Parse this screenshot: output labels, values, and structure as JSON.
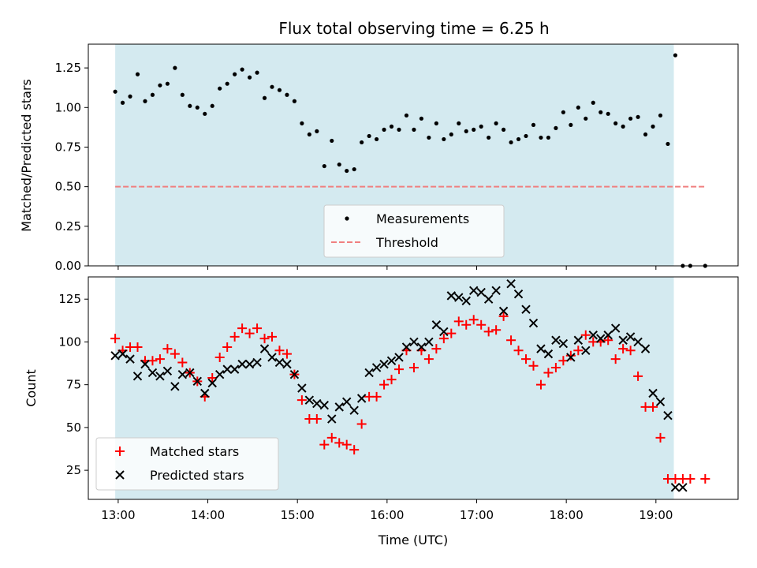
{
  "colors": {
    "span_fill": "#d4eaf0",
    "threshold_line": "#f08080",
    "measurement_marker": "#000000",
    "matched_marker": "#ff0000",
    "predicted_marker": "#000000"
  },
  "chart_data": [
    {
      "type": "scatter",
      "title": "Flux total observing time = 6.25 h",
      "xlabel": "",
      "ylabel": "Matched/Predicted stars",
      "xlim": [
        "12:40",
        "19:55"
      ],
      "ylim": [
        0,
        1.4
      ],
      "yticks": [
        0.0,
        0.25,
        0.5,
        0.75,
        1.0,
        1.25
      ],
      "ytick_labels": [
        "0.00",
        "0.25",
        "0.50",
        "0.75",
        "1.00",
        "1.25"
      ],
      "xticks": [
        "13:00",
        "14:00",
        "15:00",
        "16:00",
        "17:00",
        "18:00",
        "19:00"
      ],
      "shaded_interval": [
        "12:58",
        "19:12"
      ],
      "legend_position": "lower center",
      "series": [
        {
          "name": "Measurements",
          "style": "dots",
          "x": [
            "12:58",
            "13:03",
            "13:08",
            "13:13",
            "13:18",
            "13:23",
            "13:28",
            "13:33",
            "13:38",
            "13:43",
            "13:48",
            "13:53",
            "13:58",
            "14:03",
            "14:08",
            "14:13",
            "14:18",
            "14:23",
            "14:28",
            "14:33",
            "14:38",
            "14:43",
            "14:48",
            "14:53",
            "14:58",
            "15:03",
            "15:08",
            "15:13",
            "15:18",
            "15:23",
            "15:28",
            "15:33",
            "15:38",
            "15:43",
            "15:48",
            "15:53",
            "15:58",
            "16:03",
            "16:08",
            "16:13",
            "16:18",
            "16:23",
            "16:28",
            "16:33",
            "16:38",
            "16:43",
            "16:48",
            "16:53",
            "16:58",
            "17:03",
            "17:08",
            "17:13",
            "17:18",
            "17:23",
            "17:28",
            "17:33",
            "17:38",
            "17:43",
            "17:48",
            "17:53",
            "17:58",
            "18:03",
            "18:08",
            "18:13",
            "18:18",
            "18:23",
            "18:28",
            "18:33",
            "18:38",
            "18:43",
            "18:48",
            "18:53",
            "18:58",
            "19:03",
            "19:08",
            "19:13",
            "19:18",
            "19:23",
            "19:33"
          ],
          "y": [
            1.1,
            1.03,
            1.07,
            1.21,
            1.04,
            1.08,
            1.14,
            1.15,
            1.25,
            1.08,
            1.01,
            1.0,
            0.96,
            1.01,
            1.12,
            1.15,
            1.21,
            1.24,
            1.19,
            1.22,
            1.06,
            1.13,
            1.11,
            1.08,
            1.04,
            0.9,
            0.83,
            0.85,
            0.63,
            0.79,
            0.64,
            0.6,
            0.61,
            0.78,
            0.82,
            0.8,
            0.86,
            0.88,
            0.86,
            0.95,
            0.86,
            0.93,
            0.81,
            0.9,
            0.8,
            0.83,
            0.9,
            0.85,
            0.86,
            0.88,
            0.81,
            0.9,
            0.86,
            0.78,
            0.8,
            0.82,
            0.89,
            0.81,
            0.81,
            0.87,
            0.97,
            0.89,
            1.0,
            0.93,
            1.03,
            0.97,
            0.96,
            0.9,
            0.88,
            0.93,
            0.94,
            0.83,
            0.88,
            0.95,
            0.77,
            1.33,
            0.0,
            0.0,
            0.0
          ]
        },
        {
          "name": "Threshold",
          "style": "dashed-line",
          "x": [
            "12:58",
            "19:33"
          ],
          "y": [
            0.5,
            0.5
          ]
        }
      ]
    },
    {
      "type": "scatter",
      "title": "",
      "xlabel": "Time (UTC)",
      "ylabel": "Count",
      "xlim": [
        "12:40",
        "19:55"
      ],
      "ylim": [
        8,
        138
      ],
      "yticks": [
        25,
        50,
        75,
        100,
        125
      ],
      "ytick_labels": [
        "25",
        "50",
        "75",
        "100",
        "125"
      ],
      "xticks": [
        "13:00",
        "14:00",
        "15:00",
        "16:00",
        "17:00",
        "18:00",
        "19:00"
      ],
      "xtick_labels": [
        "13:00",
        "14:00",
        "15:00",
        "16:00",
        "17:00",
        "18:00",
        "19:00"
      ],
      "shaded_interval": [
        "12:58",
        "19:12"
      ],
      "legend_position": "lower left",
      "series": [
        {
          "name": "Matched stars",
          "style": "plus",
          "x": [
            "12:58",
            "13:03",
            "13:08",
            "13:13",
            "13:18",
            "13:23",
            "13:28",
            "13:33",
            "13:38",
            "13:43",
            "13:48",
            "13:53",
            "13:58",
            "14:03",
            "14:08",
            "14:13",
            "14:18",
            "14:23",
            "14:28",
            "14:33",
            "14:38",
            "14:43",
            "14:48",
            "14:53",
            "14:58",
            "15:03",
            "15:08",
            "15:13",
            "15:18",
            "15:23",
            "15:28",
            "15:33",
            "15:38",
            "15:43",
            "15:48",
            "15:53",
            "15:58",
            "16:03",
            "16:08",
            "16:13",
            "16:18",
            "16:23",
            "16:28",
            "16:33",
            "16:38",
            "16:43",
            "16:48",
            "16:53",
            "16:58",
            "17:03",
            "17:08",
            "17:13",
            "17:18",
            "17:23",
            "17:28",
            "17:33",
            "17:38",
            "17:43",
            "17:48",
            "17:53",
            "17:58",
            "18:03",
            "18:08",
            "18:13",
            "18:18",
            "18:23",
            "18:28",
            "18:33",
            "18:38",
            "18:43",
            "18:48",
            "18:53",
            "18:58",
            "19:03",
            "19:08",
            "19:13",
            "19:18",
            "19:23",
            "19:33"
          ],
          "y": [
            102,
            95,
            97,
            97,
            89,
            89,
            90,
            96,
            93,
            88,
            82,
            77,
            68,
            79,
            91,
            97,
            103,
            108,
            105,
            108,
            102,
            103,
            95,
            93,
            81,
            66,
            55,
            55,
            40,
            44,
            41,
            40,
            37,
            52,
            68,
            68,
            75,
            78,
            84,
            95,
            85,
            95,
            90,
            96,
            102,
            105,
            112,
            110,
            113,
            110,
            106,
            107,
            115,
            101,
            95,
            90,
            86,
            75,
            82,
            85,
            89,
            92,
            95,
            104,
            100,
            100,
            101,
            90,
            96,
            95,
            80,
            62,
            62,
            44,
            20,
            20,
            20,
            20,
            20
          ]
        },
        {
          "name": "Predicted stars",
          "style": "x",
          "x": [
            "12:58",
            "13:03",
            "13:08",
            "13:13",
            "13:18",
            "13:23",
            "13:28",
            "13:33",
            "13:38",
            "13:43",
            "13:48",
            "13:53",
            "13:58",
            "14:03",
            "14:08",
            "14:13",
            "14:18",
            "14:23",
            "14:28",
            "14:33",
            "14:38",
            "14:43",
            "14:48",
            "14:53",
            "14:58",
            "15:03",
            "15:08",
            "15:13",
            "15:18",
            "15:23",
            "15:28",
            "15:33",
            "15:38",
            "15:43",
            "15:48",
            "15:53",
            "15:58",
            "16:03",
            "16:08",
            "16:13",
            "16:18",
            "16:23",
            "16:28",
            "16:33",
            "16:38",
            "16:43",
            "16:48",
            "16:53",
            "16:58",
            "17:03",
            "17:08",
            "17:13",
            "17:18",
            "17:23",
            "17:28",
            "17:33",
            "17:38",
            "17:43",
            "17:48",
            "17:53",
            "17:58",
            "18:03",
            "18:08",
            "18:13",
            "18:18",
            "18:23",
            "18:28",
            "18:33",
            "18:38",
            "18:43",
            "18:48",
            "18:53",
            "18:58",
            "19:03",
            "19:08",
            "19:13",
            "19:18"
          ],
          "y": [
            92,
            93,
            90,
            80,
            87,
            82,
            80,
            83,
            74,
            81,
            82,
            77,
            70,
            76,
            81,
            84,
            84,
            87,
            87,
            88,
            96,
            91,
            88,
            87,
            81,
            73,
            66,
            64,
            63,
            55,
            62,
            65,
            60,
            67,
            82,
            85,
            87,
            89,
            91,
            97,
            100,
            97,
            100,
            110,
            106,
            127,
            126,
            124,
            130,
            129,
            125,
            130,
            118,
            134,
            128,
            119,
            111,
            96,
            93,
            101,
            99,
            91,
            101,
            95,
            104,
            102,
            104,
            108,
            101,
            103,
            100,
            96,
            70,
            65,
            57,
            15,
            15
          ]
        }
      ]
    }
  ]
}
